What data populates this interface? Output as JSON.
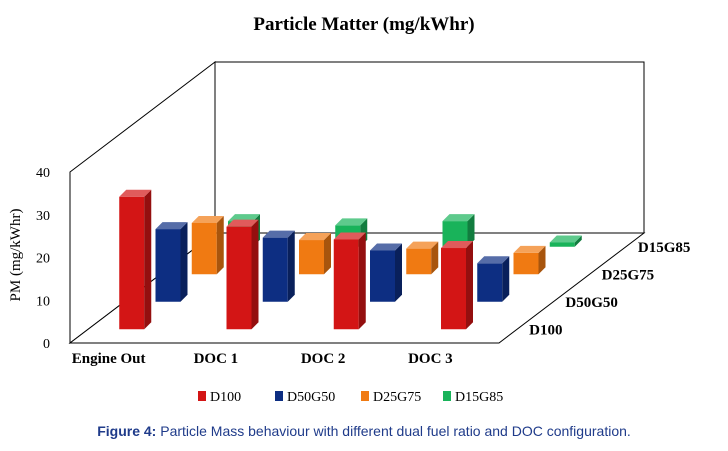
{
  "chart_data": {
    "type": "bar",
    "title": "Particle Matter (mg/kWhr)",
    "ylabel": "PM (mg/kWhr)",
    "ylim": [
      0,
      40
    ],
    "yticks": [
      0,
      10,
      20,
      30,
      40
    ],
    "categories": [
      "Engine Out",
      "DOC 1",
      "DOC 2",
      "DOC 3"
    ],
    "depth_labels": [
      "D100",
      "D50G50",
      "D25G75",
      "D15G85"
    ],
    "series": [
      {
        "name": "D100",
        "color": "#d31515",
        "values": [
          31,
          24,
          21,
          19
        ]
      },
      {
        "name": "D50G50",
        "color": "#0d2e82",
        "values": [
          17,
          15,
          12,
          9
        ]
      },
      {
        "name": "D25G75",
        "color": "#f07a12",
        "values": [
          12,
          8,
          6,
          5
        ]
      },
      {
        "name": "D15G85",
        "color": "#19b35a",
        "values": [
          6,
          5,
          6,
          1
        ]
      }
    ],
    "legend_position": "bottom",
    "grid": false
  },
  "caption": {
    "label": "Figure 4:",
    "text": "Particle Mass behaviour with different dual fuel ratio and DOC configuration."
  }
}
